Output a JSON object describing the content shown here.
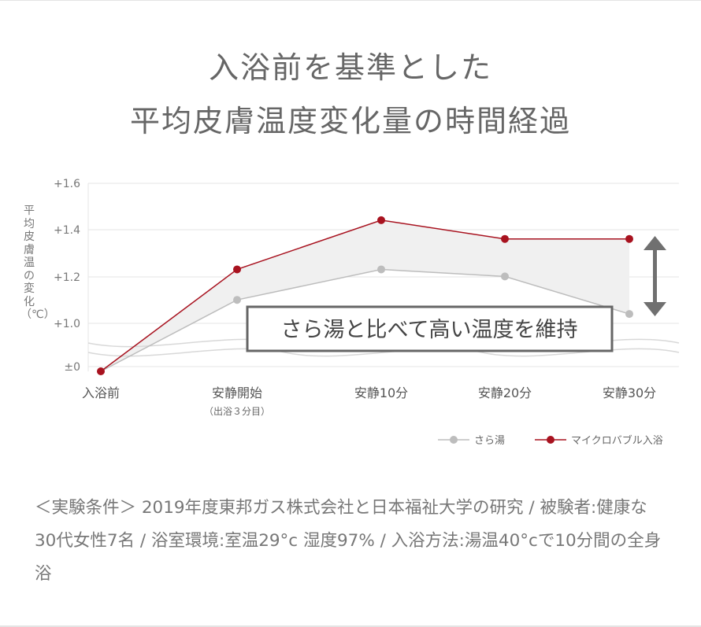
{
  "title_line1": "入浴前を基準とした",
  "title_line2": "平均皮膚温度変化量の時間経過",
  "chart_data": {
    "type": "line",
    "ylabel": "平均皮膚温の変化（℃）",
    "y_ticks": [
      "+1.6",
      "+1.4",
      "+1.2",
      "+1.0",
      "±0"
    ],
    "categories": [
      "入浴前",
      "安静開始",
      "安静10分",
      "安静20分",
      "安静30分"
    ],
    "category_sub": [
      "",
      "（出浴３分目）",
      "",
      "",
      ""
    ],
    "series": [
      {
        "name": "さら湯",
        "color": "#bdbdbd",
        "values": [
          0,
          1.1,
          1.23,
          1.2,
          1.04
        ]
      },
      {
        "name": "マイクロバブル入浴",
        "color": "#a8121f",
        "values": [
          0,
          1.23,
          1.44,
          1.36,
          1.36
        ]
      }
    ],
    "annotation": "さら湯と比べて高い温度を維持",
    "axis_break": true,
    "legend_position": "bottom-right"
  },
  "note": "＜実験条件＞ 2019年度東邦ガス株式会社と日本福祉大学の研究 / 被験者:健康な30代女性7名 / 浴室環境:室温29°c 湿度97% / 入浴方法:湯温40°cで10分間の全身浴",
  "colors": {
    "accent": "#a8121f",
    "baseline": "#bdbdbd",
    "text": "#666666",
    "fill": "#f0f0f0"
  }
}
